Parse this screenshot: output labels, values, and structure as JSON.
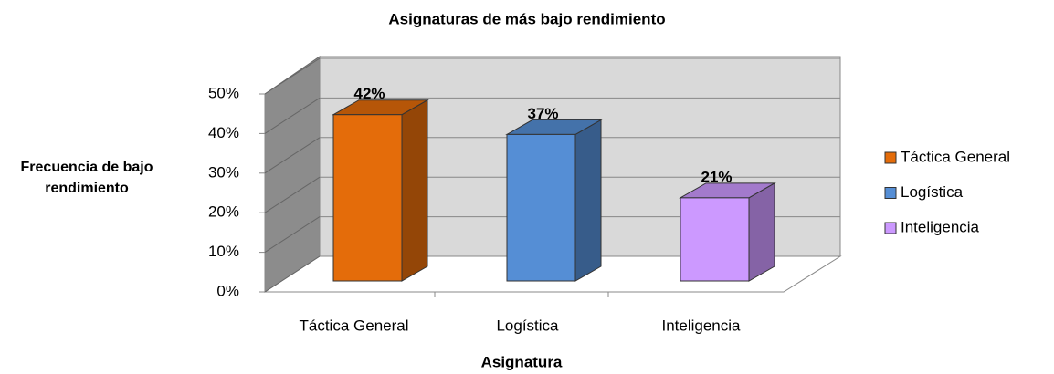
{
  "chart_data": {
    "type": "bar3d",
    "title": "Asignaturas de más bajo rendimiento",
    "x_label": "Asignatura",
    "y_label": "Frecuencia de bajo rendimiento",
    "categories": [
      "Táctica General",
      "Logística",
      "Inteligencia"
    ],
    "values": [
      42,
      37,
      21
    ],
    "value_labels": [
      "42%",
      "37%",
      "21%"
    ],
    "colors": [
      "#e46c0a",
      "#558ed5",
      "#cc99ff"
    ],
    "ylim": [
      0,
      50
    ],
    "yticks": [
      {
        "value": 0,
        "label": "0%"
      },
      {
        "value": 10,
        "label": "10%"
      },
      {
        "value": 20,
        "label": "20%"
      },
      {
        "value": 30,
        "label": "30%"
      },
      {
        "value": 40,
        "label": "40%"
      },
      {
        "value": 50,
        "label": "50%"
      }
    ],
    "grid": true,
    "legend": "right"
  }
}
